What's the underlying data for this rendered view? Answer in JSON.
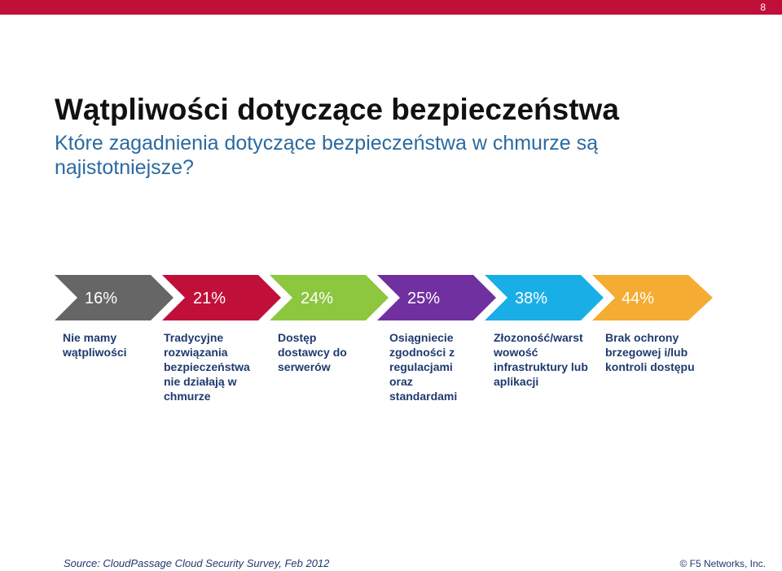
{
  "page_number": "8",
  "title": "Wątpliwości dotyczące bezpieczeństwa",
  "subtitle": "Które zagadnienia dotyczące bezpieczeństwa w chmurze są najistotniejsze?",
  "steps": [
    {
      "percent": "16%",
      "label": "Nie mamy\nwątpliwości",
      "color": "#666666"
    },
    {
      "percent": "21%",
      "label": "Tradycyjne\nrozwiązania\nbezpieczeństwa\nnie działają w\nchmurze",
      "color": "#c0103a"
    },
    {
      "percent": "24%",
      "label": "Dostęp\ndostawcy do\nserwerów",
      "color": "#8dc63f"
    },
    {
      "percent": "25%",
      "label": "Osiągniecie\nzgodności z\nregulacjami\noraz\nstandardami",
      "color": "#7030a0"
    },
    {
      "percent": "38%",
      "label": "Złozoność/warst\nwowość\ninfrastruktury lub\naplikacji",
      "color": "#1aaee6"
    },
    {
      "percent": "44%",
      "label": "Brak ochrony\nbrzegowej i/lub\nkontroli dostępu",
      "color": "#f5ac33"
    }
  ],
  "source": "Source: CloudPassage Cloud Security Survey, Feb 2012",
  "copyright": "© F5 Networks, Inc."
}
